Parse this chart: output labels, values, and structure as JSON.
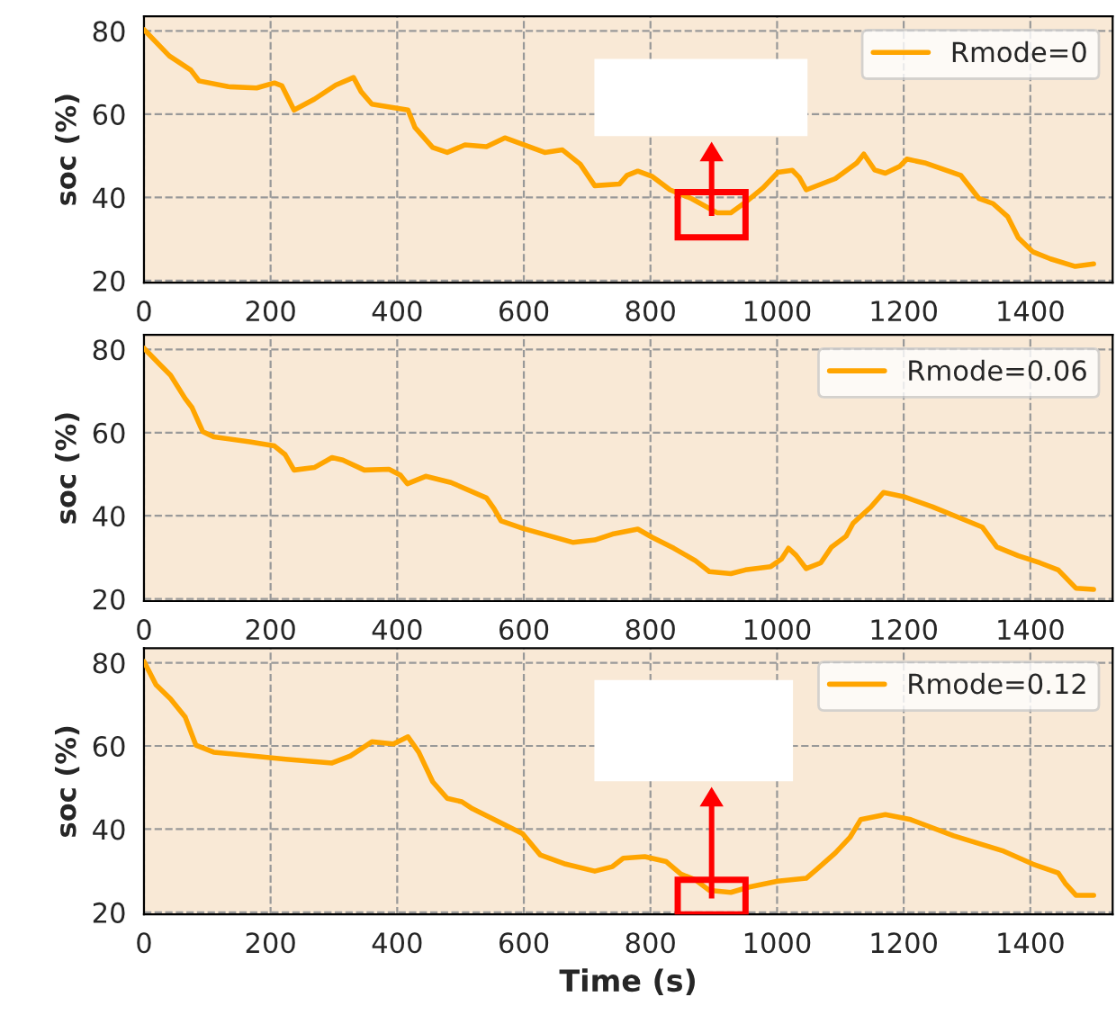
{
  "chart_data": [
    {
      "type": "line",
      "ylabel": "soc (%)",
      "xlim": [
        0,
        1530
      ],
      "ylim": [
        19.5,
        83.5
      ],
      "xticks": [
        0,
        200,
        400,
        600,
        800,
        1000,
        1200,
        1400
      ],
      "yticks": [
        20,
        40,
        60,
        80
      ],
      "grid": true,
      "legend": "top right",
      "series": [
        {
          "name": "Rmode=0",
          "color": "#ffa500",
          "x": [
            0,
            40,
            74,
            87,
            133,
            178,
            206,
            218,
            237,
            269,
            303,
            331,
            343,
            360,
            417,
            428,
            456,
            479,
            507,
            541,
            570,
            633,
            661,
            689,
            712,
            751,
            763,
            780,
            803,
            831,
            865,
            905,
            927,
            950,
            978,
            1001,
            1024,
            1035,
            1046,
            1092,
            1126,
            1137,
            1154,
            1171,
            1194,
            1205,
            1233,
            1290,
            1319,
            1341,
            1364,
            1381,
            1404,
            1432,
            1471,
            1500
          ],
          "values": [
            80.3,
            74,
            70.6,
            68,
            66.6,
            66.3,
            67.5,
            66.8,
            61,
            63.6,
            67,
            68.8,
            65.4,
            62.4,
            61,
            56.8,
            52,
            50.8,
            52.6,
            52.2,
            54.3,
            50.8,
            51.4,
            48,
            42.8,
            43.2,
            45.3,
            46.3,
            45,
            41.8,
            39.7,
            36.3,
            36.3,
            38.8,
            42.3,
            46,
            46.5,
            44.8,
            41.8,
            44.5,
            48.3,
            50.4,
            46.6,
            45.8,
            47.5,
            49.2,
            48.3,
            45.3,
            39.7,
            38.5,
            35.4,
            30.3,
            26.9,
            25.2,
            23.4,
            24
          ]
        }
      ]
    },
    {
      "type": "line",
      "ylabel": "soc (%)",
      "xlim": [
        0,
        1530
      ],
      "ylim": [
        19.5,
        83.5
      ],
      "xticks": [
        0,
        200,
        400,
        600,
        800,
        1000,
        1200,
        1400
      ],
      "yticks": [
        20,
        40,
        60,
        80
      ],
      "grid": true,
      "legend": "top right",
      "series": [
        {
          "name": "Rmode=0.06",
          "color": "#ffa500",
          "x": [
            0,
            25,
            42,
            65,
            76,
            93,
            110,
            167,
            206,
            223,
            237,
            269,
            297,
            314,
            348,
            387,
            405,
            416,
            445,
            485,
            541,
            553,
            564,
            598,
            678,
            712,
            740,
            780,
            803,
            837,
            871,
            893,
            927,
            950,
            990,
            1007,
            1018,
            1030,
            1046,
            1069,
            1086,
            1109,
            1120,
            1148,
            1168,
            1200,
            1245,
            1290,
            1324,
            1347,
            1381,
            1415,
            1444,
            1472,
            1500
          ],
          "values": [
            80.3,
            76.4,
            73.8,
            68.2,
            66,
            60.2,
            59,
            57.8,
            56.8,
            54.7,
            51,
            51.6,
            54,
            53.4,
            51,
            51.2,
            49.8,
            47.7,
            49.5,
            48,
            44.3,
            41.7,
            38.8,
            37,
            33.6,
            34.2,
            35.6,
            36.8,
            34.8,
            32.2,
            29.2,
            26.6,
            26.1,
            27,
            27.8,
            29.6,
            32.2,
            30.5,
            27.3,
            28.7,
            32.5,
            35.1,
            38.2,
            42.1,
            45.6,
            44.6,
            42.2,
            39.4,
            37.3,
            32.5,
            30.4,
            28.7,
            27,
            22.6,
            22.3
          ]
        }
      ]
    },
    {
      "type": "line",
      "ylabel": "soc (%)",
      "xlabel": "Time (s)",
      "xlim": [
        0,
        1530
      ],
      "ylim": [
        19.5,
        83.5
      ],
      "xticks": [
        0,
        200,
        400,
        600,
        800,
        1000,
        1200,
        1400
      ],
      "yticks": [
        20,
        40,
        60,
        80
      ],
      "grid": true,
      "legend": "top right",
      "series": [
        {
          "name": "Rmode=0.12",
          "color": "#ffa500",
          "x": [
            0,
            19,
            42,
            65,
            82,
            110,
            224,
            297,
            326,
            360,
            394,
            417,
            434,
            456,
            479,
            502,
            519,
            598,
            626,
            666,
            712,
            740,
            757,
            791,
            825,
            848,
            871,
            893,
            927,
            956,
            1001,
            1046,
            1063,
            1092,
            1115,
            1132,
            1171,
            1211,
            1279,
            1358,
            1404,
            1444,
            1455,
            1472,
            1500
          ],
          "values": [
            80.3,
            74.7,
            71.3,
            67,
            60.2,
            58.5,
            56.8,
            55.9,
            57.6,
            61,
            60.5,
            62.2,
            58.5,
            51.4,
            47.4,
            46.6,
            44.9,
            38.9,
            33.8,
            31.6,
            29.9,
            31,
            33,
            33.4,
            32.2,
            29.2,
            27.8,
            25.3,
            24.8,
            26.1,
            27.5,
            28.2,
            30.4,
            34.3,
            38,
            42.3,
            43.5,
            42.3,
            38.4,
            34.7,
            31.6,
            29.5,
            27,
            24.1,
            24.1
          ]
        }
      ]
    }
  ]
}
